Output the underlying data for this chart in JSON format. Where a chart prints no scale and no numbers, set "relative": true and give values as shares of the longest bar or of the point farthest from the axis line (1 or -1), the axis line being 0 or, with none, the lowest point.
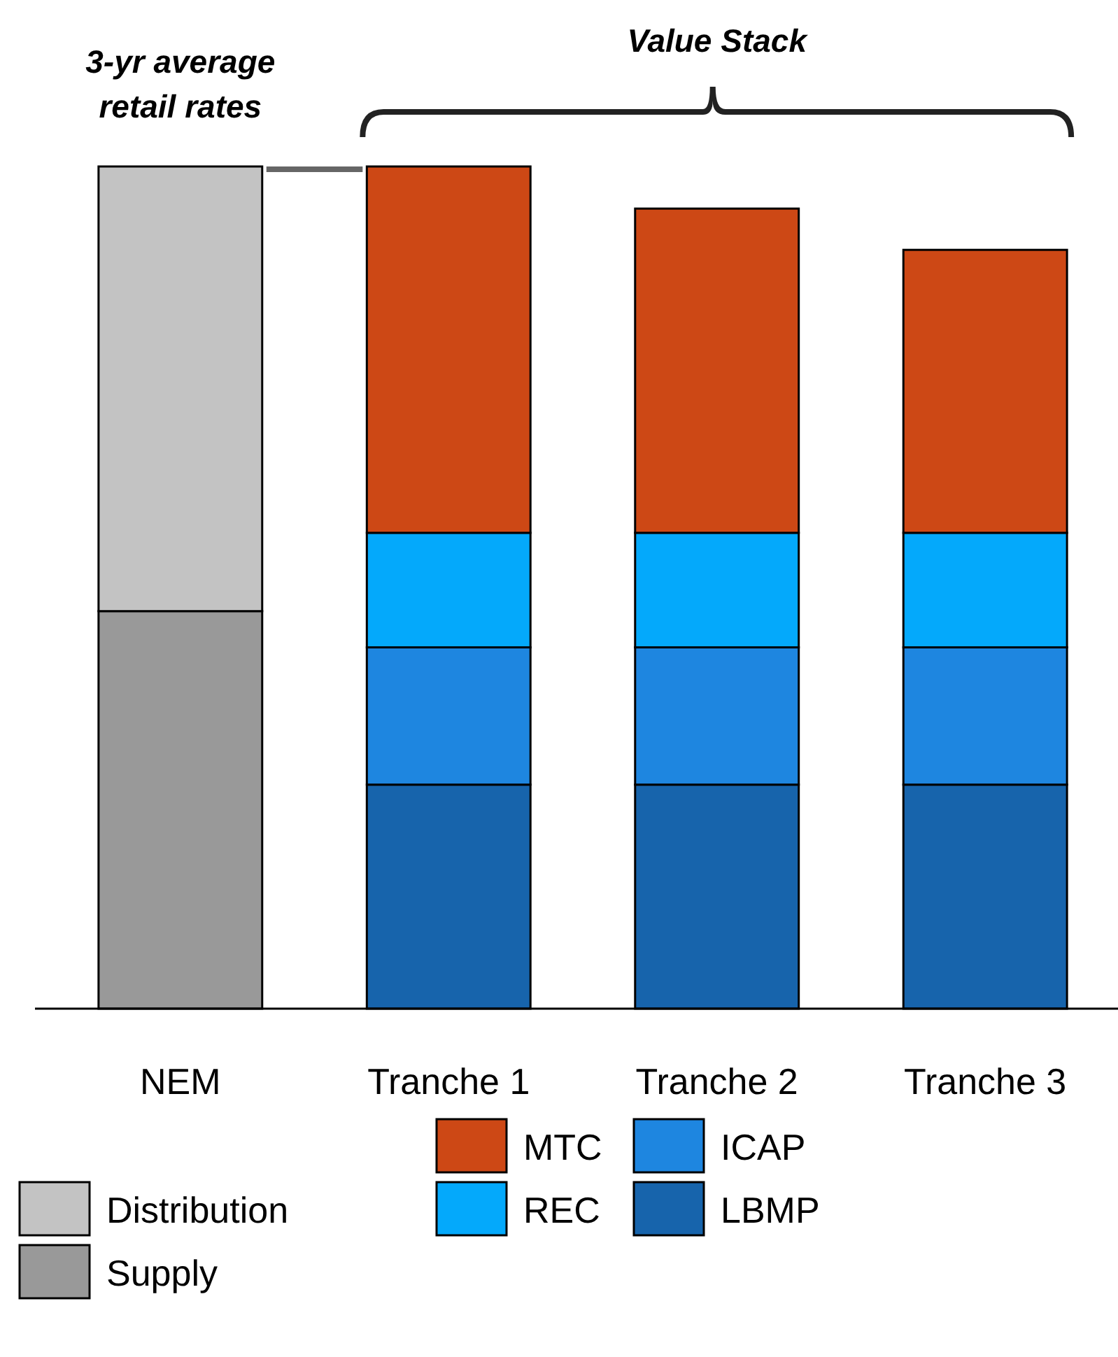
{
  "chart_data": {
    "type": "bar",
    "stacked": true,
    "relative": true,
    "legend": "bottom",
    "categories": [
      "NEM",
      "Tranche 1",
      "Tranche 2",
      "Tranche 3"
    ],
    "annotations": [
      "3-yr average retail rates",
      "Value Stack"
    ],
    "series": [
      {
        "name": "Supply",
        "color": "#999999",
        "values": [
          0.472,
          null,
          null,
          null
        ]
      },
      {
        "name": "Distribution",
        "color": "#c3c3c3",
        "values": [
          0.528,
          null,
          null,
          null
        ]
      },
      {
        "name": "LBMP",
        "color": "#1764ac",
        "values": [
          null,
          0.266,
          0.266,
          0.266
        ]
      },
      {
        "name": "ICAP",
        "color": "#1e86e0",
        "values": [
          null,
          0.163,
          0.163,
          0.163
        ]
      },
      {
        "name": "REC",
        "color": "#04a9fb",
        "values": [
          null,
          0.136,
          0.136,
          0.136
        ]
      },
      {
        "name": "MTC",
        "color": "#cd4815",
        "values": [
          null,
          0.435,
          0.385,
          0.336
        ]
      }
    ]
  }
}
